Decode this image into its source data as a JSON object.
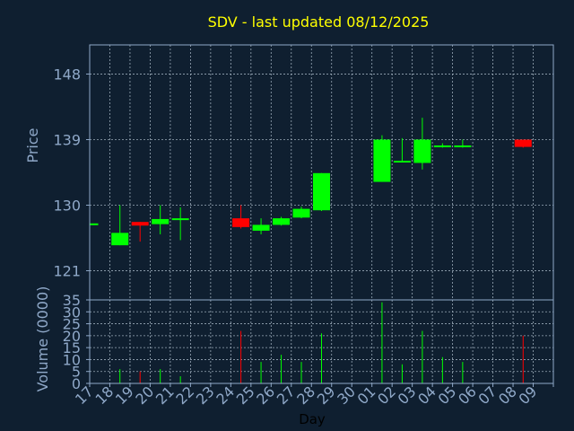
{
  "chart_data": {
    "type": "candlestick",
    "title": "SDV - last updated 08/12/2025",
    "xlabel": "Day",
    "x_ticks": [
      "17",
      "18",
      "19",
      "20",
      "21",
      "22",
      "23",
      "24",
      "25",
      "26",
      "27",
      "28",
      "29",
      "30",
      "01",
      "02",
      "03",
      "04",
      "05",
      "06",
      "07",
      "08",
      "09"
    ],
    "price": {
      "ylabel": "Price",
      "ylim": [
        117,
        152
      ],
      "y_ticks": [
        121,
        130,
        139,
        148
      ],
      "grid": true,
      "candles": [
        {
          "day": "17",
          "open": 127.5,
          "close": 127.5,
          "high": 127.5,
          "low": 127.5
        },
        {
          "day": "18",
          "open": 124.5,
          "close": 126.2,
          "high": 130.0,
          "low": 124.5
        },
        {
          "day": "19",
          "open": 127.7,
          "close": 127.2,
          "high": 127.7,
          "low": 125.0
        },
        {
          "day": "20",
          "open": 127.4,
          "close": 128.1,
          "high": 130.0,
          "low": 126.0
        },
        {
          "day": "21",
          "open": 128.0,
          "close": 128.2,
          "high": 129.7,
          "low": 125.2
        },
        {
          "day": "24",
          "open": 128.2,
          "close": 127.0,
          "high": 130.0,
          "low": 126.8
        },
        {
          "day": "25",
          "open": 126.5,
          "close": 127.3,
          "high": 128.2,
          "low": 126.0
        },
        {
          "day": "26",
          "open": 127.3,
          "close": 128.2,
          "high": 128.4,
          "low": 127.2
        },
        {
          "day": "27",
          "open": 128.3,
          "close": 129.5,
          "high": 129.8,
          "low": 128.2
        },
        {
          "day": "28",
          "open": 129.3,
          "close": 134.4,
          "high": 134.4,
          "low": 129.2
        },
        {
          "day": "01",
          "open": 133.2,
          "close": 139.0,
          "high": 139.6,
          "low": 133.2
        },
        {
          "day": "02",
          "open": 136.0,
          "close": 136.1,
          "high": 139.2,
          "low": 136.0
        },
        {
          "day": "03",
          "open": 135.8,
          "close": 139.0,
          "high": 142.0,
          "low": 134.9
        },
        {
          "day": "04",
          "open": 138.0,
          "close": 138.2,
          "high": 138.5,
          "low": 137.9
        },
        {
          "day": "05",
          "open": 138.0,
          "close": 138.2,
          "high": 139.0,
          "low": 137.9
        },
        {
          "day": "08",
          "open": 139.0,
          "close": 138.0,
          "high": 139.0,
          "low": 137.9
        }
      ]
    },
    "volume": {
      "ylabel": "Volume (0000)",
      "ylim": [
        0,
        35
      ],
      "y_ticks": [
        0,
        5,
        10,
        15,
        20,
        25,
        30,
        35
      ],
      "grid": true,
      "bars": [
        {
          "day": "18",
          "value": 6,
          "direction": "up"
        },
        {
          "day": "19",
          "value": 5,
          "direction": "down"
        },
        {
          "day": "20",
          "value": 6,
          "direction": "up"
        },
        {
          "day": "21",
          "value": 3,
          "direction": "up"
        },
        {
          "day": "24",
          "value": 22,
          "direction": "down"
        },
        {
          "day": "25",
          "value": 9,
          "direction": "up"
        },
        {
          "day": "26",
          "value": 12,
          "direction": "up"
        },
        {
          "day": "27",
          "value": 9,
          "direction": "up"
        },
        {
          "day": "28",
          "value": 21,
          "direction": "up"
        },
        {
          "day": "01",
          "value": 34,
          "direction": "up"
        },
        {
          "day": "02",
          "value": 8,
          "direction": "up"
        },
        {
          "day": "03",
          "value": 22,
          "direction": "up"
        },
        {
          "day": "04",
          "value": 11,
          "direction": "up"
        },
        {
          "day": "05",
          "value": 9,
          "direction": "up"
        },
        {
          "day": "08",
          "value": 20,
          "direction": "down"
        }
      ]
    },
    "colors": {
      "background": "#0f1f30",
      "up": "#00ff00",
      "down": "#ff0000",
      "title": "#ffff00",
      "axis_text": "#8fa8c8",
      "axis_line": "#8fa8c8",
      "grid": "#9aaab8",
      "xlabel": "#000000"
    }
  }
}
